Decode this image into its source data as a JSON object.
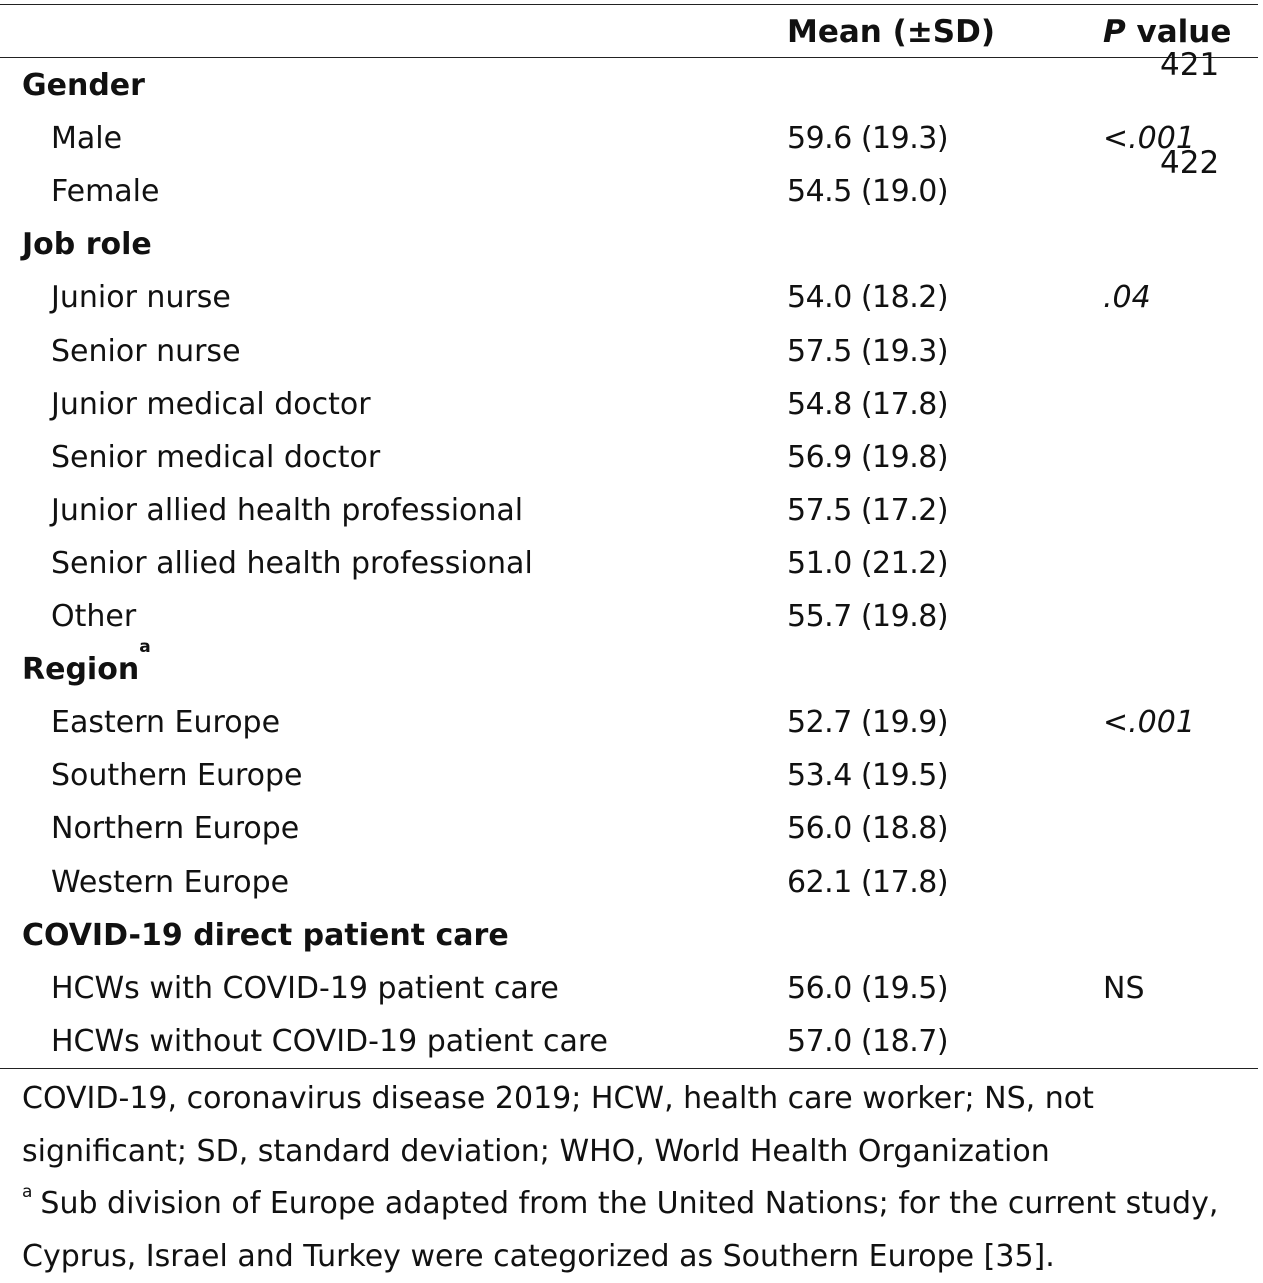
{
  "header": {
    "mean_label": "Mean (±SD)",
    "p_italic": "P",
    "p_rest": " value"
  },
  "line_numbers": [
    "421",
    "422"
  ],
  "rows": [
    {
      "label": "Gender",
      "group": true
    },
    {
      "label": "Male",
      "mean": "59.6 (19.3)",
      "p": "<.001",
      "p_italic": true
    },
    {
      "label": "Female",
      "mean": "54.5 (19.0)"
    },
    {
      "label": "Job role",
      "group": true
    },
    {
      "label": "Junior nurse",
      "mean": "54.0 (18.2)",
      "p": ".04",
      "p_italic": true
    },
    {
      "label": "Senior nurse",
      "mean": "57.5 (19.3)"
    },
    {
      "label": "Junior medical doctor",
      "mean": "54.8 (17.8)"
    },
    {
      "label": "Senior medical doctor",
      "mean": "56.9 (19.8)"
    },
    {
      "label": "Junior allied health professional",
      "mean": "57.5 (17.2)"
    },
    {
      "label": "Senior allied health professional",
      "mean": "51.0 (21.2)"
    },
    {
      "label": "Other",
      "mean": "55.7 (19.8)"
    },
    {
      "label": "Region",
      "group": true,
      "sup": "a"
    },
    {
      "label": "Eastern Europe",
      "mean": "52.7 (19.9)",
      "p": "<.001",
      "p_italic": true
    },
    {
      "label": "Southern Europe",
      "mean": "53.4 (19.5)"
    },
    {
      "label": "Northern Europe",
      "mean": "56.0 (18.8)"
    },
    {
      "label": "Western Europe",
      "mean": "62.1 (17.8)"
    },
    {
      "label": "COVID-19 direct patient care",
      "group": true
    },
    {
      "label": "HCWs with COVID-19 patient care",
      "mean": "56.0 (19.5)",
      "p": "NS",
      "p_italic": false
    },
    {
      "label": "HCWs without COVID-19 patient care",
      "mean": "57.0 (18.7)"
    }
  ],
  "footnotes": {
    "abbreviations": "COVID-19, coronavirus disease 2019; HCW, health care worker; NS, not significant; SD, standard deviation; WHO, World Health Organization",
    "note_marker": "a",
    "note": "Sub division of Europe adapted from the United Nations; for the current study, Cyprus, Israel and Turkey were categorized as Southern Europe [35]."
  }
}
